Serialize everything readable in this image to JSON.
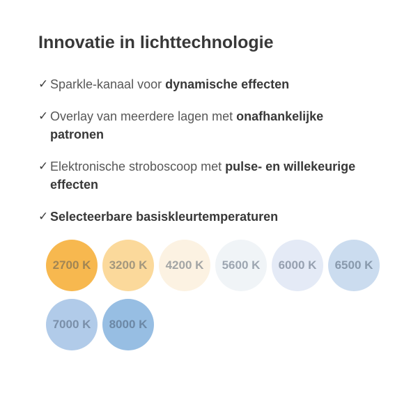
{
  "title": "Innovatie in lichttechnologie",
  "check_glyph": "✓",
  "features": [
    {
      "pre": "Sparkle-kanaal voor ",
      "bold": "dynamische effecten"
    },
    {
      "pre": "Overlay van meerdere lagen met ",
      "bold": "onafhankelijke patronen"
    },
    {
      "pre": "Elektronische stroboscoop met ",
      "bold": "pulse- en willekeurige effecten"
    },
    {
      "pre": "",
      "bold": "Selecteerbare basiskleurtemperaturen"
    }
  ],
  "color_temperatures": [
    {
      "label": "2700 K",
      "color": "#F7B84F"
    },
    {
      "label": "3200 K",
      "color": "#FBD99B"
    },
    {
      "label": "4200 K",
      "color": "#FCF2E2"
    },
    {
      "label": "5600 K",
      "color": "#F0F4F7"
    },
    {
      "label": "6000 K",
      "color": "#E4EAF6"
    },
    {
      "label": "6500 K",
      "color": "#CBDCEF"
    },
    {
      "label": "7000 K",
      "color": "#B1CBE9"
    },
    {
      "label": "8000 K",
      "color": "#97BEE3"
    }
  ]
}
